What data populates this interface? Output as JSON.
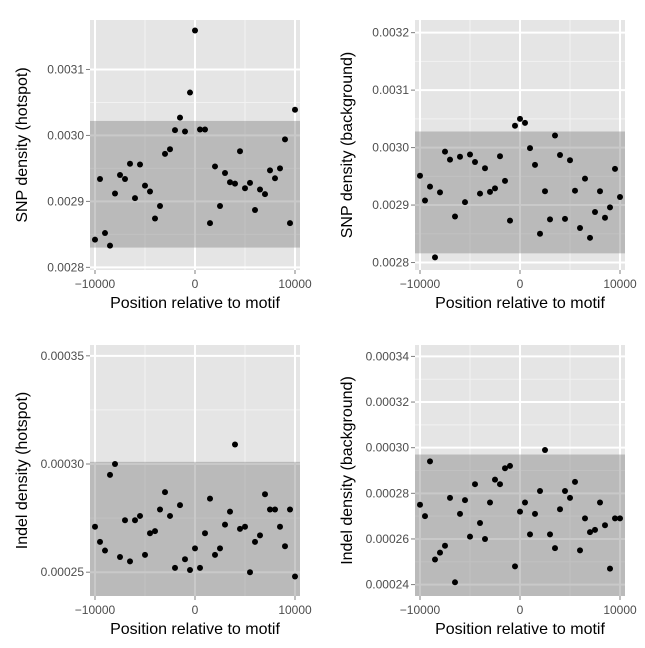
{
  "chart_data": [
    {
      "type": "scatter",
      "xlabel": "Position relative to motif",
      "ylabel": "SNP density (hotspot)",
      "xlim": [
        -10500,
        10500
      ],
      "ylim": [
        0.002796,
        0.003175
      ],
      "x_ticks": [
        -10000,
        0,
        10000
      ],
      "x_tick_labels": [
        "−10000",
        "0",
        "10000"
      ],
      "y_ticks": [
        0.0028,
        0.0029,
        0.003,
        0.0031
      ],
      "y_tick_labels": [
        "0.0028",
        "0.0029",
        "0.0030",
        "0.0031"
      ],
      "band": [
        0.00283,
        0.003022
      ],
      "grid": true,
      "points": {
        "x": [
          -10000,
          -9500,
          -9000,
          -8500,
          -8000,
          -7500,
          -7000,
          -6500,
          -6000,
          -5500,
          -5000,
          -4500,
          -4000,
          -3500,
          -3000,
          -2500,
          -2000,
          -1500,
          -1000,
          -500,
          0,
          500,
          1000,
          1500,
          2000,
          2500,
          3000,
          3500,
          4000,
          4500,
          5000,
          5500,
          6000,
          6500,
          7000,
          7500,
          8000,
          8500,
          9000,
          9500,
          10000
        ],
        "y": [
          0.002842,
          0.002934,
          0.002852,
          0.002833,
          0.002912,
          0.00294,
          0.002934,
          0.002957,
          0.002905,
          0.002956,
          0.002924,
          0.002915,
          0.002874,
          0.002893,
          0.002972,
          0.002979,
          0.003008,
          0.003027,
          0.003006,
          0.003065,
          0.003159,
          0.003009,
          0.003009,
          0.002867,
          0.002953,
          0.002893,
          0.002943,
          0.002929,
          0.002927,
          0.002976,
          0.00292,
          0.002928,
          0.002887,
          0.002918,
          0.002911,
          0.002947,
          0.002935,
          0.00295,
          0.002994,
          0.002867,
          0.003039
        ]
      }
    },
    {
      "type": "scatter",
      "xlabel": "Position relative to motif",
      "ylabel": "SNP density (background)",
      "xlim": [
        -10500,
        10500
      ],
      "ylim": [
        0.002787,
        0.003222
      ],
      "x_ticks": [
        -10000,
        0,
        10000
      ],
      "x_tick_labels": [
        "−10000",
        "0",
        "10000"
      ],
      "y_ticks": [
        0.0028,
        0.0029,
        0.003,
        0.0031,
        0.0032
      ],
      "y_tick_labels": [
        "0.0028",
        "0.0029",
        "0.0030",
        "0.0031",
        "0.0032"
      ],
      "band": [
        0.002816,
        0.003028
      ],
      "grid": true,
      "points": {
        "x": [
          -10000,
          -9500,
          -9000,
          -8500,
          -8000,
          -7500,
          -7000,
          -6500,
          -6000,
          -5500,
          -5000,
          -4500,
          -4000,
          -3500,
          -3000,
          -2500,
          -2000,
          -1500,
          -1000,
          -500,
          0,
          500,
          1000,
          1500,
          2000,
          2500,
          3000,
          3500,
          4000,
          4500,
          5000,
          5500,
          6000,
          6500,
          7000,
          7500,
          8000,
          8500,
          9000,
          9500,
          10000
        ],
        "y": [
          0.002951,
          0.002908,
          0.002932,
          0.002809,
          0.002922,
          0.002993,
          0.002979,
          0.00288,
          0.002984,
          0.002905,
          0.002988,
          0.002975,
          0.00292,
          0.002964,
          0.002923,
          0.002929,
          0.002985,
          0.002942,
          0.002873,
          0.003038,
          0.00305,
          0.003043,
          0.002999,
          0.00297,
          0.00285,
          0.002924,
          0.002875,
          0.003021,
          0.002987,
          0.002876,
          0.002978,
          0.002925,
          0.00286,
          0.002946,
          0.002843,
          0.002888,
          0.002924,
          0.002878,
          0.002896,
          0.002963,
          0.002914
        ]
      }
    },
    {
      "type": "scatter",
      "xlabel": "Position relative to motif",
      "ylabel": "Indel density (hotspot)",
      "xlim": [
        -10500,
        10500
      ],
      "ylim": [
        0.000239,
        0.000355
      ],
      "x_ticks": [
        -10000,
        0,
        10000
      ],
      "x_tick_labels": [
        "−10000",
        "0",
        "10000"
      ],
      "y_ticks": [
        0.00025,
        0.0003,
        0.00035
      ],
      "y_tick_labels": [
        "0.00025",
        "0.00030",
        "0.00035"
      ],
      "band": [
        0.000239,
        0.000301
      ],
      "grid": true,
      "points": {
        "x": [
          -10000,
          -9500,
          -9000,
          -8500,
          -8000,
          -7500,
          -7000,
          -6500,
          -6000,
          -5500,
          -5000,
          -4500,
          -4000,
          -3500,
          -3000,
          -2500,
          -2000,
          -1500,
          -1000,
          -500,
          0,
          500,
          1000,
          1500,
          2000,
          2500,
          3000,
          3500,
          4000,
          4500,
          5000,
          5500,
          6000,
          6500,
          7000,
          7500,
          8000,
          8500,
          9000,
          9500,
          10000
        ],
        "y": [
          0.000271,
          0.000264,
          0.00026,
          0.000295,
          0.0003,
          0.000257,
          0.000274,
          0.000255,
          0.000274,
          0.000276,
          0.000258,
          0.000268,
          0.000269,
          0.000279,
          0.000287,
          0.000276,
          0.000252,
          0.000281,
          0.000256,
          0.000251,
          0.000261,
          0.000252,
          0.000268,
          0.000284,
          0.000258,
          0.000261,
          0.000272,
          0.000278,
          0.000309,
          0.00027,
          0.000271,
          0.00025,
          0.000264,
          0.000267,
          0.000286,
          0.000279,
          0.000279,
          0.000271,
          0.000262,
          0.000279,
          0.000248
        ]
      }
    },
    {
      "type": "scatter",
      "xlabel": "Position relative to motif",
      "ylabel": "Indel density (background)",
      "xlim": [
        -10500,
        10500
      ],
      "ylim": [
        0.000235,
        0.000345
      ],
      "x_ticks": [
        -10000,
        0,
        10000
      ],
      "x_tick_labels": [
        "−10000",
        "0",
        "10000"
      ],
      "y_ticks": [
        0.00024,
        0.00026,
        0.00028,
        0.0003,
        0.00032,
        0.00034
      ],
      "y_tick_labels": [
        "0.00024",
        "0.00026",
        "0.00028",
        "0.00030",
        "0.00032",
        "0.00034"
      ],
      "band": [
        0.000235,
        0.000297
      ],
      "grid": true,
      "points": {
        "x": [
          -10000,
          -9500,
          -9000,
          -8500,
          -8000,
          -7500,
          -7000,
          -6500,
          -6000,
          -5500,
          -5000,
          -4500,
          -4000,
          -3500,
          -3000,
          -2500,
          -2000,
          -1500,
          -1000,
          -500,
          0,
          500,
          1000,
          1500,
          2000,
          2500,
          3000,
          3500,
          4000,
          4500,
          5000,
          5500,
          6000,
          6500,
          7000,
          7500,
          8000,
          8500,
          9000,
          9500,
          10000
        ],
        "y": [
          0.000275,
          0.00027,
          0.000294,
          0.000251,
          0.000254,
          0.000257,
          0.000278,
          0.000241,
          0.000271,
          0.000277,
          0.000261,
          0.000284,
          0.000267,
          0.00026,
          0.000276,
          0.000286,
          0.000284,
          0.000291,
          0.000292,
          0.000248,
          0.000272,
          0.000276,
          0.000262,
          0.000271,
          0.000281,
          0.000299,
          0.000262,
          0.000256,
          0.000273,
          0.000281,
          0.000278,
          0.000285,
          0.000255,
          0.000269,
          0.000263,
          0.000264,
          0.000276,
          0.000266,
          0.000247,
          0.000269,
          0.000269
        ]
      }
    }
  ]
}
